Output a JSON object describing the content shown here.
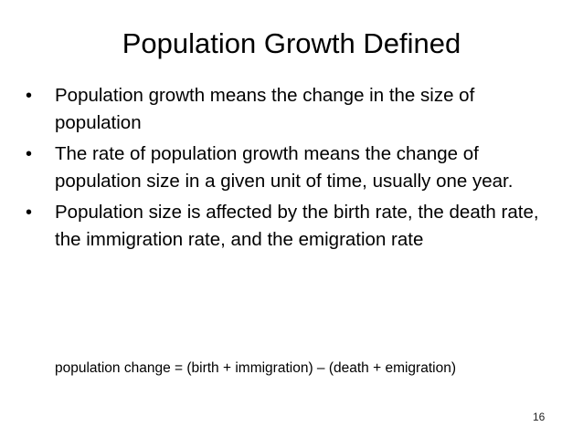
{
  "slide": {
    "title": "Population Growth Defined",
    "bullets": [
      "Population growth means the change in the size of population",
      "The rate of population growth means the change of population size in a given unit of time, usually one year.",
      "Population size is affected by the birth rate, the death rate, the immigration rate, and the emigration rate"
    ],
    "bullet_marker": "•",
    "formula": "population change = (birth + immigration) – (death + emigration)",
    "page_number": "16"
  }
}
